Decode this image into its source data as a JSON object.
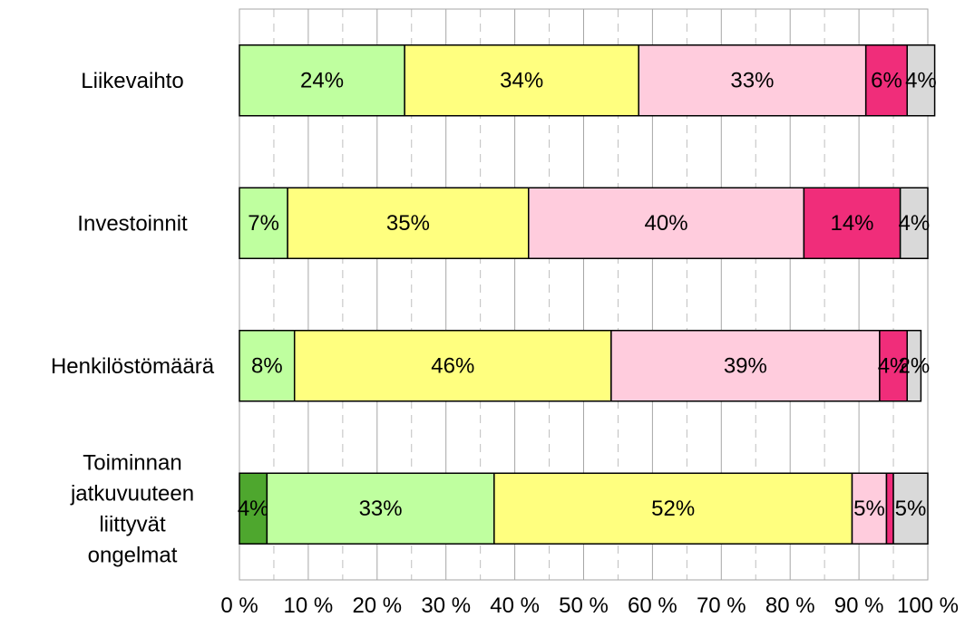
{
  "chart_data": {
    "type": "bar",
    "orientation": "horizontal",
    "stacked": true,
    "percent_stacked": true,
    "categories": [
      [
        "Liikevaihto"
      ],
      [
        "Investoinnit"
      ],
      [
        "Henkilöstömäärä"
      ],
      [
        "Toiminnan",
        "jatkuvuuteen",
        "liittyvät",
        "ongelmat"
      ]
    ],
    "series": [
      {
        "color": "#4ea72e",
        "values": [
          0,
          0,
          0,
          4
        ],
        "labels": [
          "",
          "",
          "",
          "4%"
        ]
      },
      {
        "color": "#bfff9f",
        "values": [
          24,
          7,
          8,
          33
        ],
        "labels": [
          "24%",
          "7%",
          "8%",
          "33%"
        ]
      },
      {
        "color": "#ffff7f",
        "values": [
          34,
          35,
          46,
          52
        ],
        "labels": [
          "34%",
          "35%",
          "46%",
          "52%"
        ]
      },
      {
        "color": "#ffccdd",
        "values": [
          33,
          40,
          39,
          5
        ],
        "labels": [
          "33%",
          "40%",
          "39%",
          "5%"
        ]
      },
      {
        "color": "#f02d7a",
        "values": [
          6,
          14,
          4,
          1
        ],
        "labels": [
          "6%",
          "14%",
          "4%",
          ""
        ]
      },
      {
        "color": "#d9d9d9",
        "values": [
          4,
          4,
          2,
          5
        ],
        "labels": [
          "4%",
          "4%",
          "2%",
          "5%"
        ]
      }
    ],
    "x_ticks": [
      "0 %",
      "10 %",
      "20 %",
      "30 %",
      "40 %",
      "50 %",
      "60 %",
      "70 %",
      "80 %",
      "90 %",
      "100 %"
    ],
    "xlim": [
      0,
      100
    ],
    "grid": {
      "major": "solid",
      "minor": "dashed"
    },
    "legend": "none"
  }
}
